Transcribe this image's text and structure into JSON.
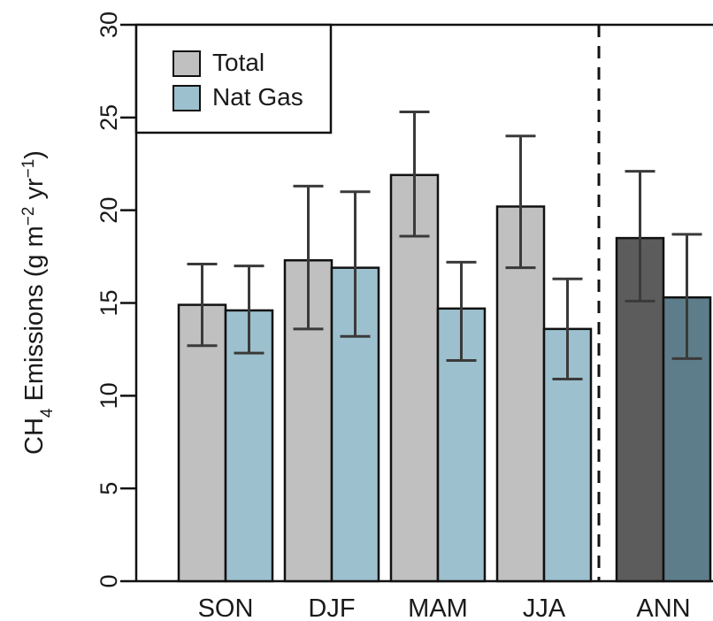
{
  "chart_data": {
    "type": "bar",
    "categories": [
      "SON",
      "DJF",
      "MAM",
      "JJA",
      "ANN"
    ],
    "series": [
      {
        "name": "Total",
        "values": [
          14.9,
          17.3,
          21.9,
          20.2,
          18.5
        ],
        "err_low": [
          12.7,
          13.6,
          18.6,
          16.9,
          15.1
        ],
        "err_high": [
          17.1,
          21.3,
          25.3,
          24.0,
          22.1
        ],
        "color": "#c0c0c0",
        "annual_color": "#5c5c5c"
      },
      {
        "name": "Nat Gas",
        "values": [
          14.6,
          16.9,
          14.7,
          13.6,
          15.3
        ],
        "err_low": [
          12.3,
          13.2,
          11.9,
          10.9,
          12.0
        ],
        "err_high": [
          17.0,
          21.0,
          17.2,
          16.3,
          18.7
        ],
        "color": "#9cc0cd",
        "annual_color": "#5e7d8a"
      }
    ],
    "ylabel": {
      "prefix": "CH",
      "subscript": "4",
      "middle": " Emissions (g m",
      "sup1": "−2",
      "mid2": " yr",
      "sup2": "−1",
      "suffix": ")"
    },
    "ylim": [
      0,
      30
    ],
    "yticks": [
      0,
      5,
      10,
      15,
      20,
      25,
      30
    ],
    "ytick_labels": [
      "0",
      "5",
      "10",
      "15",
      "20",
      "25",
      "30"
    ],
    "separator": "dashed line between JJA and ANN",
    "legend_position": "top-left",
    "grid": false
  }
}
